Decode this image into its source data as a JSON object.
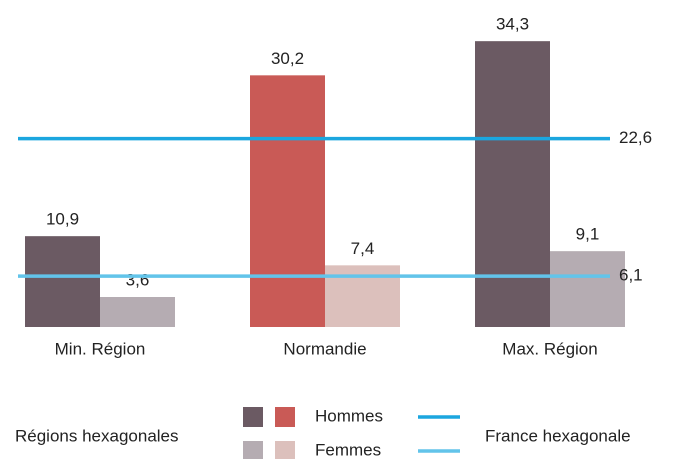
{
  "chart_data": {
    "type": "bar",
    "categories": [
      "Min. Région",
      "Normandie",
      "Max. Région"
    ],
    "series": [
      {
        "name": "Hommes",
        "colors": [
          "#6b5a63",
          "#c95a56",
          "#6b5a63"
        ],
        "label_colors": [
          "#555555",
          "#c95a56",
          "#555555"
        ],
        "values": [
          10.9,
          30.2,
          34.3
        ],
        "value_labels": [
          "10,9",
          "30,2",
          "34,3"
        ]
      },
      {
        "name": "Femmes",
        "colors": [
          "#b5acb2",
          "#dcc0bc",
          "#b5acb2"
        ],
        "label_colors": [
          "#666666",
          "#b9867c",
          "#666666"
        ],
        "values": [
          3.6,
          7.4,
          9.1
        ],
        "value_labels": [
          "3,6",
          "7,4",
          "9,1"
        ]
      }
    ],
    "reference_lines": [
      {
        "value": 22.6,
        "label": "22,6",
        "color": "#1ba6df"
      },
      {
        "value": 6.1,
        "label": "6,1",
        "color": "#62c4ea"
      }
    ],
    "legend": {
      "groups": [
        "Régions hexagonales",
        "France hexagonale"
      ]
    },
    "ylim": [
      0,
      36
    ]
  }
}
